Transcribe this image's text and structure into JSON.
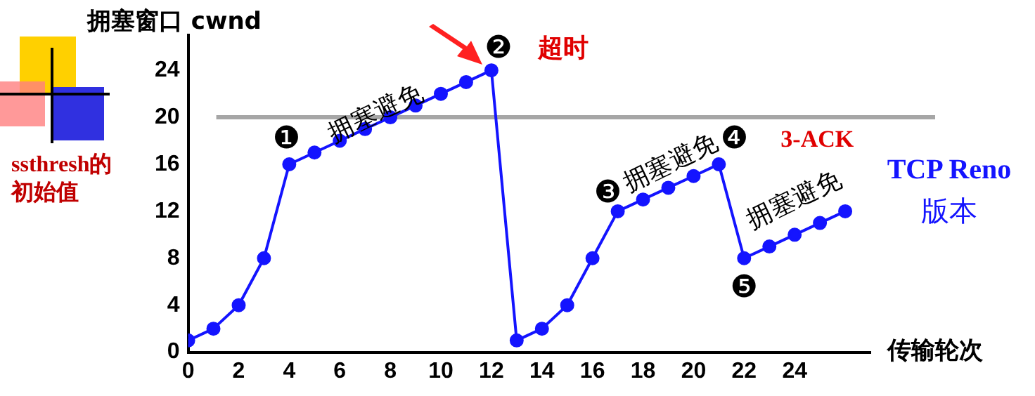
{
  "chart_data": {
    "type": "line",
    "xlabel": "传输轮次",
    "ylabel": "拥塞窗口 cwnd",
    "x": [
      0,
      1,
      2,
      3,
      4,
      5,
      6,
      7,
      8,
      9,
      10,
      11,
      12,
      13,
      14,
      15,
      16,
      17,
      18,
      19,
      20,
      21,
      22,
      23,
      24,
      25,
      26
    ],
    "series": [
      {
        "color": "#1414ff",
        "values": [
          1,
          2,
          4,
          8,
          16,
          17,
          18,
          19,
          20,
          21,
          22,
          23,
          24,
          1,
          2,
          4,
          8,
          12,
          13,
          14,
          15,
          16,
          8,
          9,
          10,
          11,
          12
        ]
      }
    ],
    "xlim": [
      0,
      27
    ],
    "xticks": [
      0,
      2,
      4,
      6,
      8,
      10,
      12,
      14,
      16,
      18,
      20,
      22,
      24
    ],
    "ylim": [
      0,
      27
    ],
    "yticks": [
      0,
      4,
      8,
      12,
      16,
      20,
      24
    ],
    "grid": false,
    "legend": false,
    "marker": "circle",
    "line_style": "solid",
    "ref_lines": [
      {
        "axis": "y",
        "value": 20,
        "color": "#a6a6a6"
      }
    ],
    "annotations": [
      {
        "text": "拥塞避免",
        "x": 8,
        "y": 20
      },
      {
        "text": "拥塞避免",
        "x": 19,
        "y": 14
      },
      {
        "text": "拥塞避免",
        "x": 24,
        "y": 10
      },
      {
        "text": "❶",
        "x": 4,
        "y": 16
      },
      {
        "text": "❷",
        "x": 12,
        "y": 24
      },
      {
        "text": "超时",
        "x": 12,
        "y": 24
      },
      {
        "text": "❸",
        "x": 17,
        "y": 12
      },
      {
        "text": "❹",
        "x": 21,
        "y": 16
      },
      {
        "text": "3-ACK",
        "x": 21,
        "y": 16
      },
      {
        "text": "❺",
        "x": 22,
        "y": 8
      },
      "TCP Reno",
      "版本",
      "ssthresh的初始值"
    ]
  }
}
